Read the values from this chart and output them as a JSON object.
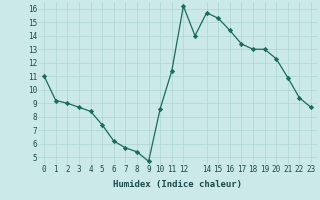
{
  "x": [
    0,
    1,
    2,
    3,
    4,
    5,
    6,
    7,
    8,
    9,
    10,
    11,
    12,
    13,
    14,
    15,
    16,
    17,
    18,
    19,
    20,
    21,
    22,
    23
  ],
  "y": [
    11,
    9.2,
    9.0,
    8.7,
    8.4,
    7.4,
    6.2,
    5.7,
    5.4,
    4.7,
    8.6,
    11.4,
    16.2,
    14.0,
    15.7,
    15.3,
    14.4,
    13.4,
    13.0,
    13.0,
    12.3,
    10.9,
    9.4,
    8.7
  ],
  "xlabel": "Humidex (Indice chaleur)",
  "xlim": [
    -0.5,
    23.5
  ],
  "ylim": [
    4.5,
    16.5
  ],
  "yticks": [
    5,
    6,
    7,
    8,
    9,
    10,
    11,
    12,
    13,
    14,
    15,
    16
  ],
  "xticks": [
    0,
    1,
    2,
    3,
    4,
    5,
    6,
    7,
    8,
    9,
    10,
    11,
    12,
    14,
    15,
    16,
    17,
    18,
    19,
    20,
    21,
    22,
    23
  ],
  "xtick_labels": [
    "0",
    "1",
    "2",
    "3",
    "4",
    "5",
    "6",
    "7",
    "8",
    "9",
    "10",
    "11",
    "12",
    "14",
    "15",
    "16",
    "17",
    "18",
    "19",
    "20",
    "21",
    "22",
    "23"
  ],
  "line_color": "#1a6b5a",
  "marker_color": "#1a6b5a",
  "bg_color": "#cce9e9",
  "grid_color": "#aad4d4",
  "tick_label_color": "#1a4a4a",
  "xlabel_color": "#1a4a4a",
  "tick_fontsize": 5.5,
  "xlabel_fontsize": 6.5
}
